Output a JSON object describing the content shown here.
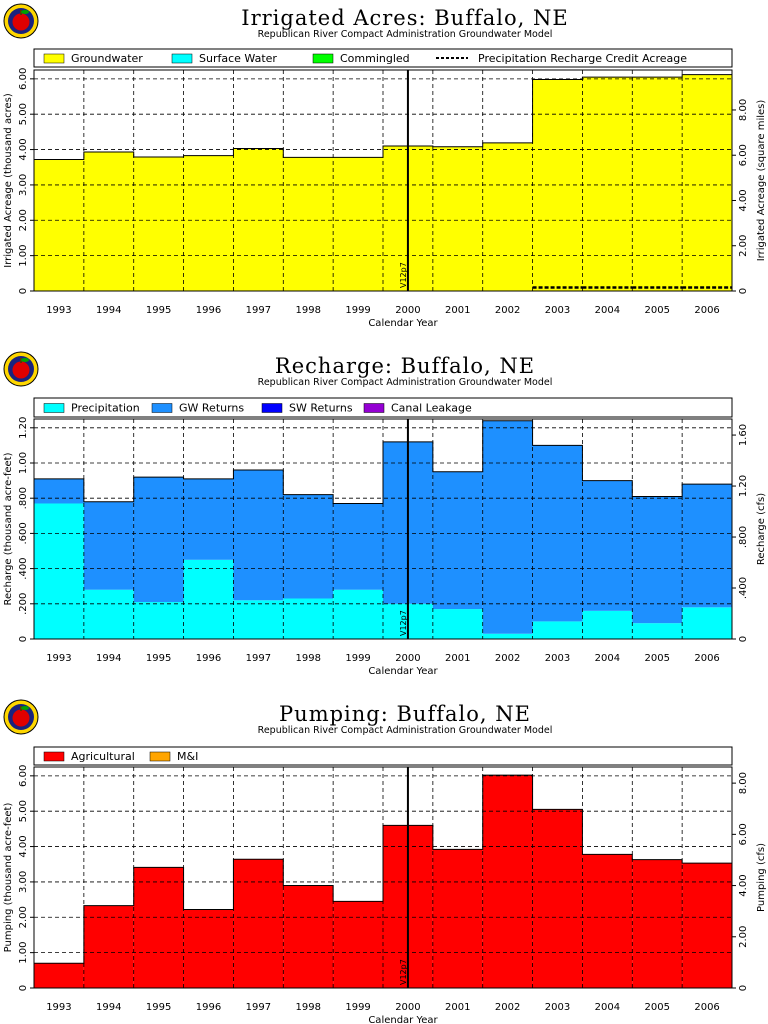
{
  "chart_data": [
    {
      "id": "acres",
      "type": "bar",
      "title": "Irrigated Acres: Buffalo, NE",
      "subtitle": "Republican River Compact Administration Groundwater Model",
      "xlabel": "Calendar Year",
      "ylabel": "Irrigated Acreage (thousand acres)",
      "y2label": "Irrigated Acreage (square miles)",
      "categories": [
        "1993",
        "1994",
        "1995",
        "1996",
        "1997",
        "1998",
        "1999",
        "2000",
        "2001",
        "2002",
        "2003",
        "2004",
        "2005",
        "2006"
      ],
      "ylim": [
        0,
        6.25
      ],
      "yticks": [
        0,
        1,
        2,
        3,
        4,
        5,
        6
      ],
      "yticklabels": [
        "0",
        "1.00",
        "2.00",
        "3.00",
        "4.00",
        "5.00",
        "6.00"
      ],
      "y2lim": [
        0,
        9.766
      ],
      "y2ticks": [
        0,
        2,
        4,
        6,
        8
      ],
      "y2ticklabels": [
        "0",
        "2.00",
        "4.00",
        "6.00",
        "8.00"
      ],
      "series": [
        {
          "name": "Groundwater",
          "color": "#ffff00",
          "values": [
            3.72,
            3.93,
            3.79,
            3.83,
            4.03,
            3.78,
            3.78,
            4.1,
            4.08,
            4.19,
            5.98,
            6.05,
            6.05,
            6.12
          ]
        },
        {
          "name": "Surface Water",
          "color": "#00ffff",
          "values": [
            0,
            0,
            0,
            0,
            0,
            0,
            0,
            0,
            0,
            0,
            0,
            0,
            0,
            0
          ]
        },
        {
          "name": "Commingled",
          "color": "#00ff00",
          "values": [
            0,
            0,
            0,
            0,
            0,
            0,
            0,
            0,
            0,
            0,
            0,
            0,
            0,
            0
          ]
        }
      ],
      "line_series": {
        "name": "Precipitation Recharge Credit Acreage",
        "values": [
          null,
          null,
          null,
          null,
          null,
          null,
          null,
          null,
          null,
          null,
          0.1,
          0.1,
          0.1,
          0.1
        ]
      },
      "marker": {
        "label": "V12p7",
        "position": 7.5
      },
      "legend": "top"
    },
    {
      "id": "recharge",
      "type": "bar",
      "title": "Recharge: Buffalo, NE",
      "subtitle": "Republican River Compact Administration Groundwater Model",
      "xlabel": "Calendar Year",
      "ylabel": "Recharge (thousand acre-feet)",
      "y2label": "Recharge (cfs)",
      "categories": [
        "1993",
        "1994",
        "1995",
        "1996",
        "1997",
        "1998",
        "1999",
        "2000",
        "2001",
        "2002",
        "2003",
        "2004",
        "2005",
        "2006"
      ],
      "ylim": [
        0,
        1.25
      ],
      "yticks": [
        0,
        0.2,
        0.4,
        0.6,
        0.8,
        1.0,
        1.2
      ],
      "yticklabels": [
        "0",
        ".200",
        ".400",
        ".600",
        ".800",
        "1.00",
        "1.20"
      ],
      "y2lim": [
        0,
        1.726
      ],
      "y2ticks": [
        0,
        0.4,
        0.8,
        1.2,
        1.6
      ],
      "y2ticklabels": [
        "0",
        ".400",
        ".800",
        "1.20",
        "1.60"
      ],
      "series": [
        {
          "name": "Precipitation",
          "color": "#00ffff",
          "values": [
            0.77,
            0.28,
            0.21,
            0.45,
            0.22,
            0.23,
            0.28,
            0.2,
            0.17,
            0.03,
            0.1,
            0.16,
            0.09,
            0.18
          ]
        },
        {
          "name": "GW Returns",
          "color": "#1e90ff",
          "values": [
            0.14,
            0.5,
            0.71,
            0.46,
            0.74,
            0.59,
            0.49,
            0.92,
            0.78,
            1.21,
            1.0,
            0.74,
            0.72,
            0.7
          ]
        },
        {
          "name": "SW Returns",
          "color": "#0000ff",
          "values": [
            0,
            0,
            0,
            0,
            0,
            0,
            0,
            0,
            0,
            0,
            0,
            0,
            0,
            0
          ]
        },
        {
          "name": "Canal Leakage",
          "color": "#9400d3",
          "values": [
            0,
            0,
            0,
            0,
            0,
            0,
            0,
            0,
            0,
            0,
            0,
            0,
            0,
            0
          ]
        }
      ],
      "marker": {
        "label": "V12p7",
        "position": 7.5
      },
      "legend": "top"
    },
    {
      "id": "pumping",
      "type": "bar",
      "title": "Pumping: Buffalo, NE",
      "subtitle": "Republican River Compact Administration Groundwater Model",
      "xlabel": "Calendar Year",
      "ylabel": "Pumping (thousand acre-feet)",
      "y2label": "Pumping (cfs)",
      "categories": [
        "1993",
        "1994",
        "1995",
        "1996",
        "1997",
        "1998",
        "1999",
        "2000",
        "2001",
        "2002",
        "2003",
        "2004",
        "2005",
        "2006"
      ],
      "ylim": [
        0,
        6.25
      ],
      "yticks": [
        0,
        1,
        2,
        3,
        4,
        5,
        6
      ],
      "yticklabels": [
        "0",
        "1.00",
        "2.00",
        "3.00",
        "4.00",
        "5.00",
        "6.00"
      ],
      "y2lim": [
        0,
        8.63
      ],
      "y2ticks": [
        0,
        2,
        4,
        6,
        8
      ],
      "y2ticklabels": [
        "0",
        "2.00",
        "4.00",
        "6.00",
        "8.00"
      ],
      "series": [
        {
          "name": "Agricultural",
          "color": "#ff0000",
          "values": [
            0.7,
            2.33,
            3.41,
            2.22,
            3.64,
            2.9,
            2.45,
            4.6,
            3.92,
            6.02,
            5.05,
            3.78,
            3.63,
            3.53
          ]
        },
        {
          "name": "M&I",
          "color": "#ffa500",
          "values": [
            0,
            0,
            0,
            0,
            0,
            0,
            0,
            0,
            0,
            0,
            0,
            0,
            0,
            0
          ]
        }
      ],
      "marker": {
        "label": "V12p7",
        "position": 7.5
      },
      "legend": "top"
    }
  ]
}
